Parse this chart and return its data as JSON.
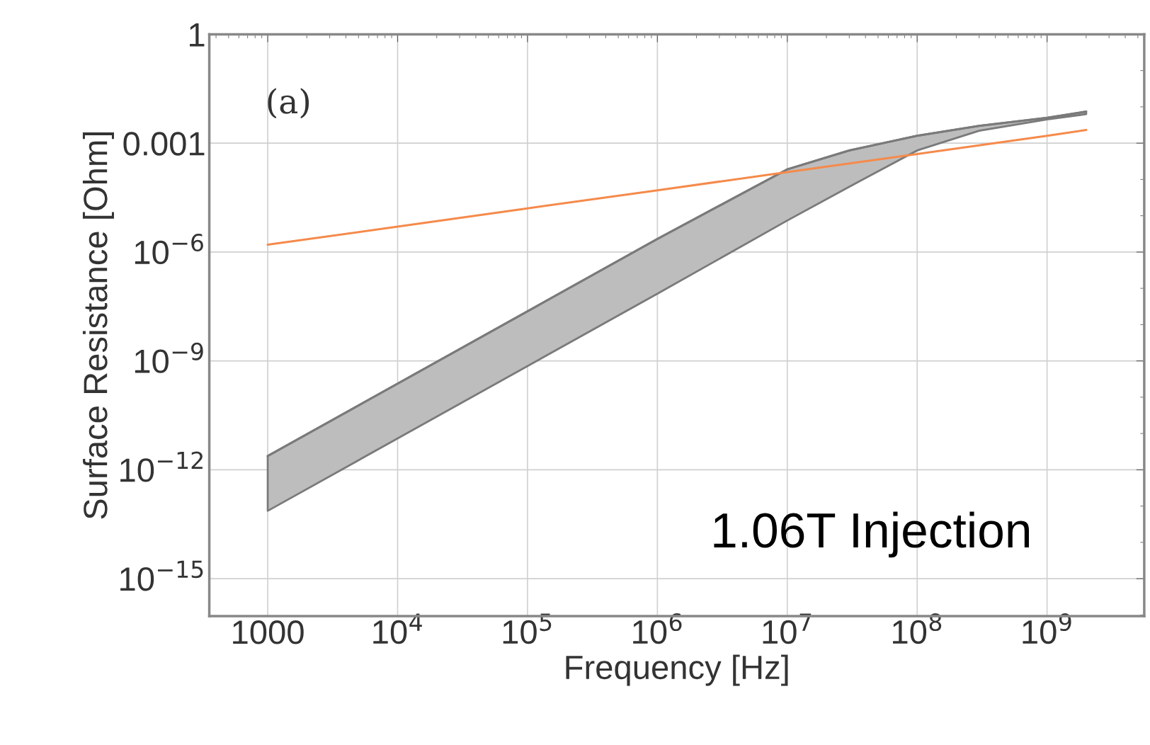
{
  "chart_data": {
    "type": "line",
    "xlabel": "Frequency [Hz]",
    "ylabel": "Surface Resistance [Ohm]",
    "log": "xy",
    "xlim": [
      355,
      5600000000
    ],
    "ylim": [
      9.3e-17,
      1
    ],
    "xticks": [
      1000,
      {
        "value": 10000,
        "label": "10$^{4}$"
      },
      {
        "value": 100000,
        "label": "10$^{5}$"
      },
      {
        "value": 1000000,
        "label": "10$^{6}$"
      },
      {
        "value": 10000000,
        "label": "10$^{7}$"
      },
      {
        "value": 100000000,
        "label": "10$^{8}$"
      },
      {
        "value": 1000000000,
        "label": "10$^{9}$"
      }
    ],
    "yticks": [
      1,
      0.001,
      {
        "value": 1e-06,
        "label": "10$^{−6}$"
      },
      {
        "value": 1e-09,
        "label": "10$^{−9}$"
      },
      {
        "value": 1e-12,
        "label": "10$^{−12}$"
      },
      {
        "value": 1e-15,
        "label": "10$^{−15}$"
      }
    ],
    "grid": true,
    "series": [
      {
        "type": "line",
        "color": "#7a7a7a",
        "x": [
          1000,
          1000000,
          10000000,
          30000000,
          100000000,
          300000000,
          1000000000,
          2000000000
        ],
        "values": [
          2.4e-12,
          2.3e-06,
          0.00019,
          0.00063,
          0.0016,
          0.003,
          0.005,
          0.0074
        ],
        "lower": [
          7.4e-14,
          7.1e-08,
          7.4e-06,
          6.3e-05,
          0.00063,
          0.0022,
          0.0045,
          0.0063
        ],
        "upper": [
          2.4e-12,
          2.3e-06,
          0.00019,
          0.00063,
          0.0016,
          0.003,
          0.005,
          0.0074
        ]
      },
      {
        "color": "#f58a4b",
        "x": [
          1000,
          10000,
          100000,
          1000000,
          10000000,
          100000000,
          1000000000,
          2000000000
        ],
        "values": [
          1.6e-06,
          5e-06,
          1.6e-05,
          5e-05,
          0.00016,
          0.0005,
          0.0016,
          0.0023
        ]
      }
    ],
    "annotations": [
      "(a)",
      "1.06T Injection"
    ]
  }
}
